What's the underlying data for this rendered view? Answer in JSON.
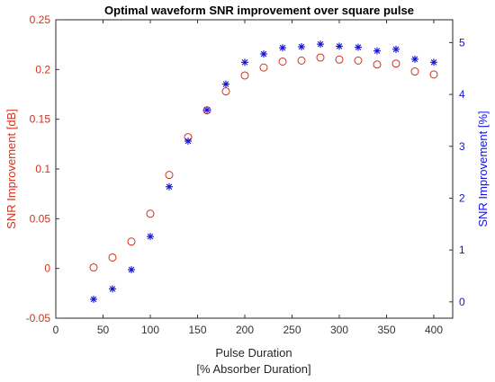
{
  "chart_data": {
    "type": "scatter",
    "title": "Optimal waveform SNR improvement over square pulse",
    "xlabel_line1": "Pulse Duration",
    "xlabel_line2": "[% Absorber Duration]",
    "ylabel_left": "SNR Improvement [dB]",
    "ylabel_right": "SNR Improvement [%]",
    "xlim": [
      0,
      420
    ],
    "ylim_left": [
      -0.05,
      0.25
    ],
    "ylim_right": [
      -0.315,
      5.44
    ],
    "x_ticks": [
      0,
      50,
      100,
      150,
      200,
      250,
      300,
      350,
      400
    ],
    "y_left_ticks": [
      -0.05,
      0,
      0.05,
      0.1,
      0.15,
      0.2,
      0.25
    ],
    "y_left_tick_labels": [
      "-0.05",
      "0",
      "0.05",
      "0.1",
      "0.15",
      "0.2",
      "0.25"
    ],
    "y_right_ticks": [
      0,
      1,
      2,
      3,
      4,
      5
    ],
    "x": [
      40,
      60,
      80,
      100,
      120,
      140,
      160,
      180,
      200,
      220,
      240,
      260,
      280,
      300,
      320,
      340,
      360,
      380,
      400
    ],
    "series": [
      {
        "axis": "left",
        "marker": "circle",
        "color": "#cc3322",
        "values": [
          0.001,
          0.011,
          0.027,
          0.055,
          0.094,
          0.132,
          0.159,
          0.178,
          0.194,
          0.202,
          0.208,
          0.209,
          0.212,
          0.21,
          0.209,
          0.205,
          0.206,
          0.198,
          0.195
        ]
      },
      {
        "axis": "right",
        "marker": "asterisk",
        "color": "#1111dd",
        "values": [
          0.05,
          0.25,
          0.62,
          1.26,
          2.22,
          3.1,
          3.7,
          4.2,
          4.62,
          4.78,
          4.9,
          4.92,
          4.97,
          4.93,
          4.91,
          4.84,
          4.87,
          4.68,
          4.62
        ]
      }
    ],
    "colors": {
      "left_axis": "#cc3322",
      "right_axis": "#1111dd",
      "axis": "#333333"
    }
  }
}
